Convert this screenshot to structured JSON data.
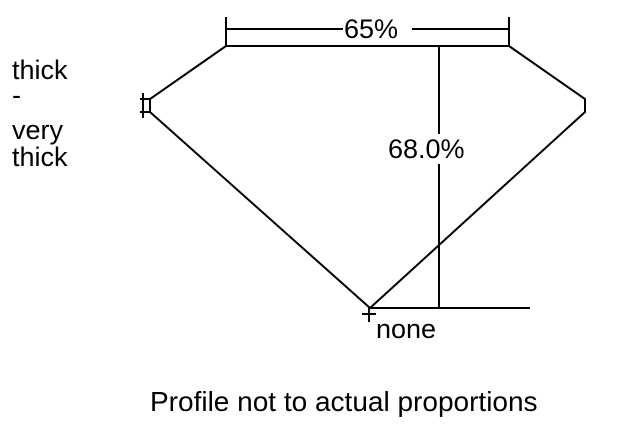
{
  "diagram": {
    "table_percent": "65%",
    "depth_percent": "68.0%",
    "girdle_label": [
      "thick",
      "-",
      "very",
      "thick"
    ],
    "culet_label": "none",
    "caption": "Profile not to actual proportions",
    "line_color": "#000000"
  }
}
